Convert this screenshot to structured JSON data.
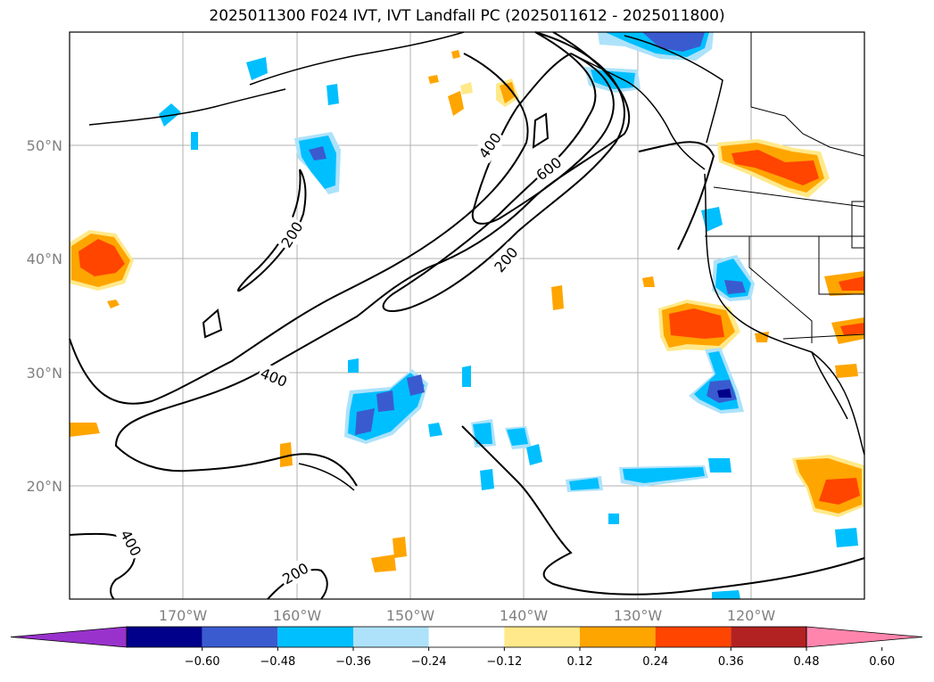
{
  "title": "2025011300 F024 IVT, IVT Landfall PC (2025011612 - 2025011800)",
  "map": {
    "lat_labels": [
      "50°N",
      "40°N",
      "30°N",
      "20°N"
    ],
    "lon_labels": [
      "170°W",
      "160°W",
      "150°W",
      "140°W",
      "130°W",
      "120°W"
    ],
    "contour_labels": [
      {
        "text": "200",
        "id": "contour-label-200-a"
      },
      {
        "text": "400",
        "id": "contour-label-400-a"
      },
      {
        "text": "600",
        "id": "contour-label-600"
      },
      {
        "text": "200",
        "id": "contour-label-200-b"
      },
      {
        "text": "400",
        "id": "contour-label-400-b"
      },
      {
        "text": "400",
        "id": "contour-label-400-c"
      },
      {
        "text": "200",
        "id": "contour-label-200-c"
      }
    ]
  },
  "colorbar": {
    "ticks": [
      "−0.60",
      "−0.48",
      "−0.36",
      "−0.24",
      "−0.12",
      "0.12",
      "0.24",
      "0.36",
      "0.48",
      "0.60"
    ],
    "colors": [
      "#9932cc",
      "#00008b",
      "#3a5bd0",
      "#00bfff",
      "#ade2fa",
      "#ffffff",
      "#ffe98a",
      "#ffa500",
      "#ff4500",
      "#b22222",
      "#ff85ad"
    ]
  }
}
